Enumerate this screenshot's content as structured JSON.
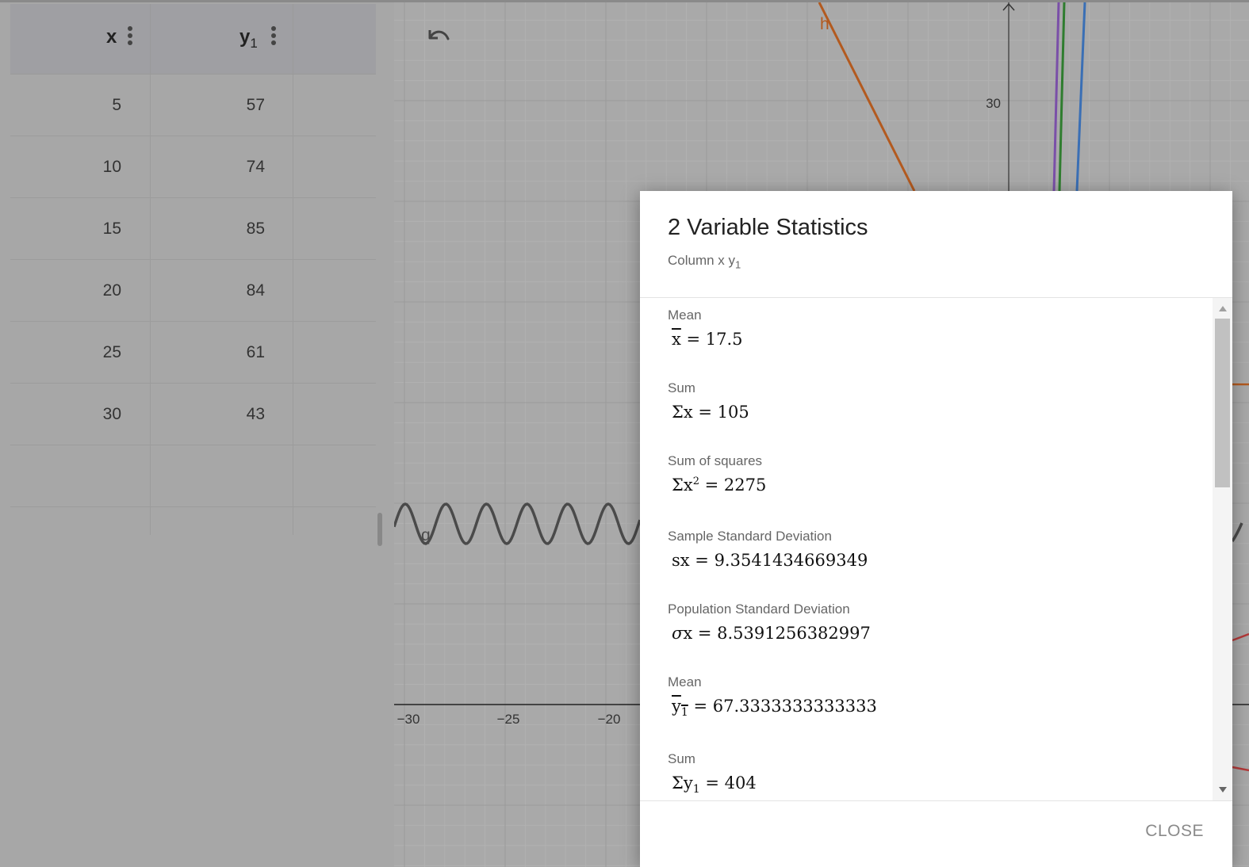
{
  "table": {
    "headers": [
      {
        "name": "x",
        "sub": ""
      },
      {
        "name": "y",
        "sub": "1"
      }
    ],
    "rows": [
      {
        "x": "5",
        "y": "57"
      },
      {
        "x": "10",
        "y": "74"
      },
      {
        "x": "15",
        "y": "85"
      },
      {
        "x": "20",
        "y": "84"
      },
      {
        "x": "25",
        "y": "61"
      },
      {
        "x": "30",
        "y": "43"
      }
    ]
  },
  "graph": {
    "x_ticks": [
      "−30",
      "−25",
      "−20"
    ],
    "y_ticks": [
      "30"
    ],
    "curve_labels": {
      "h": "h",
      "q": "q"
    },
    "colors": {
      "h": "#b35a1f",
      "q": "#4a4a4a",
      "purple": "#7a4fa8",
      "green": "#2f7d2f",
      "blue": "#3a6fb5",
      "red": "#b33a3a"
    }
  },
  "dialog": {
    "title": "2 Variable Statistics",
    "subtitle_main": "Column x y",
    "subtitle_sub": "1",
    "close_label": "CLOSE",
    "stats": [
      {
        "label": "Mean",
        "pre": "",
        "sym": "x",
        "sub": "",
        "sup": "",
        "overline": true,
        "value": " = 17.5"
      },
      {
        "label": "Sum",
        "pre": "Σ",
        "sym": "x",
        "sub": "",
        "sup": "",
        "overline": false,
        "value": " = 105"
      },
      {
        "label": "Sum of squares",
        "pre": "Σ",
        "sym": "x",
        "sub": "",
        "sup": "2",
        "overline": false,
        "value": " = 2275"
      },
      {
        "label": "Sample Standard Deviation",
        "pre": "s",
        "sym": "x",
        "sub": "",
        "sup": "",
        "overline": false,
        "value": " = 9.3541434669349"
      },
      {
        "label": "Population Standard Deviation",
        "pre": "σ",
        "sym": "x",
        "sub": "",
        "sup": "",
        "overline": false,
        "value": " = 8.5391256382997"
      },
      {
        "label": "Mean",
        "pre": "",
        "sym": "y",
        "sub": "1",
        "sup": "",
        "overline": true,
        "value": " = 67.3333333333333"
      },
      {
        "label": "Sum",
        "pre": "Σ",
        "sym": "y",
        "sub": "1",
        "sup": "",
        "overline": false,
        "value": " = 404"
      }
    ]
  }
}
